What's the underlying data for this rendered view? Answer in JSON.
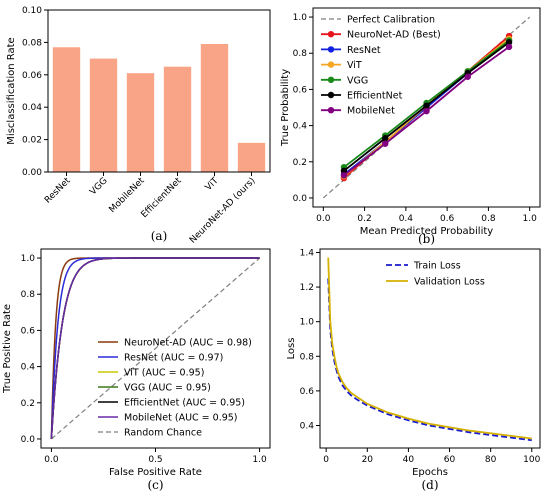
{
  "chart_data": [
    {
      "type": "bar",
      "panel_label": "(a)",
      "title": "",
      "xlabel": "",
      "ylabel": "Misclassification Rate",
      "categories": [
        "ResNet",
        "VGG",
        "MobileNet",
        "EfficientNet",
        "ViT",
        "NeuroNet-AD (ours)"
      ],
      "values": [
        0.077,
        0.07,
        0.061,
        0.065,
        0.079,
        0.018
      ],
      "ylim": [
        0,
        0.1
      ],
      "yticks": [
        "0.00",
        "0.02",
        "0.04",
        "0.06",
        "0.08",
        "0.10"
      ],
      "bar_color": "#f9a486",
      "grid": false
    },
    {
      "type": "line",
      "panel_label": "(b)",
      "title": "",
      "xlabel": "Mean Predicted Probability",
      "ylabel": "True Probability",
      "xlim": [
        -0.05,
        1.05
      ],
      "ylim": [
        -0.05,
        1.05
      ],
      "xticks": [
        "0.0",
        "0.2",
        "0.4",
        "0.6",
        "0.8",
        "1.0"
      ],
      "yticks": [
        "0.0",
        "0.2",
        "0.4",
        "0.6",
        "0.8",
        "1.0"
      ],
      "legend_position": "top-left",
      "reference": {
        "name": "Perfect Calibration",
        "x": [
          0,
          1
        ],
        "y": [
          0,
          1
        ],
        "color": "#808080",
        "dash": true
      },
      "x": [
        0.1,
        0.3,
        0.5,
        0.7,
        0.9
      ],
      "series": [
        {
          "name": "NeuroNet-AD (Best)",
          "color": "#e8141c",
          "values": [
            0.11,
            0.31,
            0.5,
            0.7,
            0.895
          ]
        },
        {
          "name": "ResNet",
          "color": "#1020e0",
          "values": [
            0.13,
            0.31,
            0.5,
            0.69,
            0.87
          ]
        },
        {
          "name": "ViT",
          "color": "#f5a623",
          "values": [
            0.12,
            0.31,
            0.51,
            0.7,
            0.88
          ]
        },
        {
          "name": "VGG",
          "color": "#1a8a1a",
          "values": [
            0.17,
            0.345,
            0.525,
            0.7,
            0.87
          ]
        },
        {
          "name": "EfficientNet",
          "color": "#000000",
          "values": [
            0.15,
            0.33,
            0.51,
            0.69,
            0.86
          ]
        },
        {
          "name": "MobileNet",
          "color": "#800080",
          "values": [
            0.125,
            0.3,
            0.48,
            0.67,
            0.835
          ]
        }
      ],
      "grid": false
    },
    {
      "type": "line",
      "panel_label": "(c)",
      "title": "",
      "xlabel": "False Positive Rate",
      "ylabel": "True Positive Rate",
      "xlim": [
        -0.05,
        1.05
      ],
      "ylim": [
        -0.05,
        1.05
      ],
      "xticks": [
        "0.0",
        "0.5",
        "1.0"
      ],
      "yticks": [
        "0.0",
        "0.2",
        "0.4",
        "0.6",
        "0.8",
        "1.0"
      ],
      "legend_position": "lower-right",
      "reference": {
        "name": "Random Chance",
        "x": [
          0,
          1
        ],
        "y": [
          0,
          1
        ],
        "color": "#808080",
        "dash": true
      },
      "series": [
        {
          "name": "NeuroNet-AD (AUC = 0.98)",
          "color": "#8b3a0f",
          "auc": 0.98
        },
        {
          "name": "ResNet (AUC = 0.97)",
          "color": "#2a2ad8",
          "auc": 0.97
        },
        {
          "name": "ViT (AUC = 0.95)",
          "color": "#c8c800",
          "auc": 0.95
        },
        {
          "name": "VGG (AUC = 0.95)",
          "color": "#3a7a1a",
          "auc": 0.95
        },
        {
          "name": "EfficientNet (AUC = 0.95)",
          "color": "#000000",
          "auc": 0.95
        },
        {
          "name": "MobileNet (AUC = 0.95)",
          "color": "#6a2aa8",
          "auc": 0.95
        }
      ],
      "grid": false
    },
    {
      "type": "line",
      "panel_label": "(d)",
      "title": "",
      "xlabel": "Epochs",
      "ylabel": "Loss",
      "xlim": [
        -3,
        104
      ],
      "ylim": [
        0.27,
        1.42
      ],
      "xticks": [
        "0",
        "20",
        "40",
        "60",
        "80",
        "100"
      ],
      "yticks": [
        "0.4",
        "0.6",
        "0.8",
        "1.0",
        "1.2",
        "1.4"
      ],
      "legend_position": "top-right",
      "x": [
        1,
        2,
        3,
        4,
        5,
        6,
        8,
        10,
        12,
        15,
        20,
        25,
        30,
        40,
        50,
        60,
        70,
        80,
        90,
        100
      ],
      "series": [
        {
          "name": "Train Loss",
          "color": "#1a1ad0",
          "dash": true,
          "values": [
            1.25,
            0.95,
            0.84,
            0.77,
            0.72,
            0.68,
            0.63,
            0.6,
            0.575,
            0.55,
            0.515,
            0.49,
            0.465,
            0.43,
            0.4,
            0.38,
            0.36,
            0.345,
            0.33,
            0.315
          ]
        },
        {
          "name": "Validation Loss",
          "color": "#d4b000",
          "dash": false,
          "values": [
            1.37,
            1.0,
            0.87,
            0.8,
            0.74,
            0.7,
            0.65,
            0.615,
            0.59,
            0.565,
            0.525,
            0.5,
            0.475,
            0.44,
            0.41,
            0.39,
            0.37,
            0.355,
            0.34,
            0.325
          ]
        }
      ],
      "grid": false
    }
  ]
}
